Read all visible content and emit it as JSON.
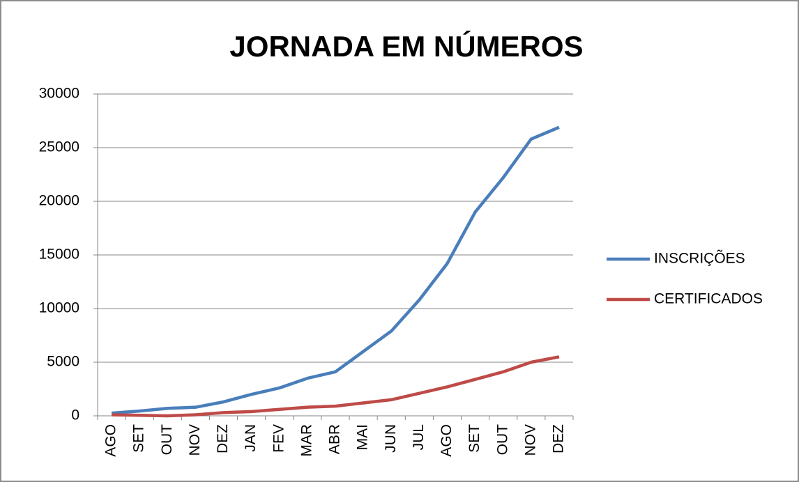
{
  "chart_data": {
    "type": "line",
    "title": "JORNADA EM NÚMEROS",
    "categories": [
      "AGO",
      "SET",
      "OUT",
      "NOV",
      "DEZ",
      "JAN",
      "FEV",
      "MAR",
      "ABR",
      "MAI",
      "JUN",
      "JUL",
      "AGO",
      "SET",
      "OUT",
      "NOV",
      "DEZ"
    ],
    "series": [
      {
        "name": "INSCRIÇÕES",
        "color": "#4a7ebb",
        "values": [
          250,
          450,
          700,
          800,
          1300,
          2000,
          2600,
          3500,
          4100,
          6000,
          7900,
          10800,
          14200,
          19000,
          22200,
          25800,
          26900
        ]
      },
      {
        "name": "CERTIFICADOS",
        "color": "#be4b48",
        "values": [
          100,
          50,
          0,
          100,
          300,
          400,
          600,
          800,
          900,
          1200,
          1500,
          2100,
          2700,
          3400,
          4100,
          5000,
          5500
        ]
      }
    ],
    "ylim": [
      0,
      30000
    ],
    "yticks": [
      0,
      5000,
      10000,
      15000,
      20000,
      25000,
      30000
    ],
    "grid": true,
    "legend": "right"
  }
}
